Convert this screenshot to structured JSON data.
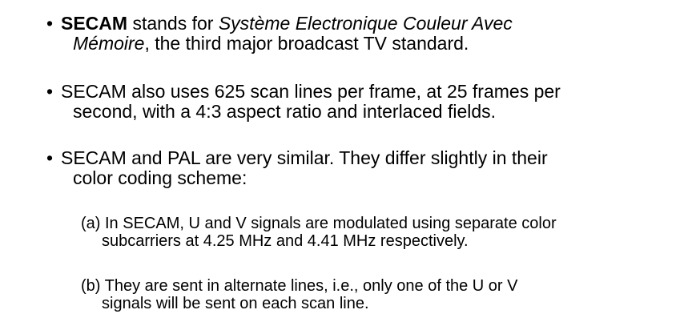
{
  "bullet_glyph": "•",
  "bullets": [
    {
      "bold": "SECAM",
      "text1": " stands for ",
      "italic1": "Système Electronique Couleur Avec",
      "italic2": "Mémoire",
      "text2": ", the third major broadcast TV standard."
    },
    {
      "line1": "SECAM also uses 625 scan lines per frame, at 25 frames per",
      "line2": "second, with a 4:3 aspect ratio and interlaced fields."
    },
    {
      "line1": "SECAM and PAL are very similar. They differ slightly in their",
      "line2": "color coding scheme:"
    }
  ],
  "sub_items": [
    {
      "line1": "(a) In SECAM, U and V signals are modulated using separate color",
      "line2": "subcarriers at 4.25 MHz and 4.41 MHz respectively."
    },
    {
      "line1": "(b) They are sent in alternate lines, i.e., only one of the U or V",
      "line2": "signals will be sent on each scan line."
    }
  ]
}
